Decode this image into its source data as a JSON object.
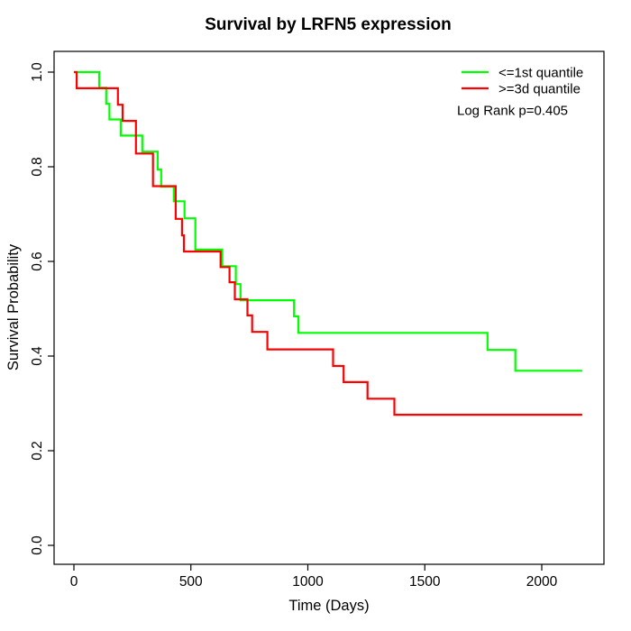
{
  "chart_data": {
    "type": "line",
    "subtype": "kaplan-meier-step",
    "title": "Survival by LRFN5 expression",
    "xlabel": "Time (Days)",
    "ylabel": "Survival Probability",
    "x_ticks": [
      0,
      500,
      1000,
      1500,
      2000
    ],
    "y_ticks": [
      {
        "v": 0.0,
        "label": "0.0"
      },
      {
        "v": 0.2,
        "label": "0.2"
      },
      {
        "v": 0.4,
        "label": "0.4"
      },
      {
        "v": 0.6,
        "label": "0.6"
      },
      {
        "v": 0.8,
        "label": "0.8"
      },
      {
        "v": 1.0,
        "label": "1.0"
      }
    ],
    "xlim": [
      0,
      2173
    ],
    "ylim": [
      0,
      1
    ],
    "grid": false,
    "legend": {
      "position": "top-right",
      "entries": [
        {
          "label": "<=1st quantile",
          "color": "#00FF00"
        },
        {
          "label": ">=3d quantile",
          "color": "#FF0000"
        }
      ]
    },
    "annotation": "Log Rank p=0.405",
    "axis_color": "#000000",
    "series": [
      {
        "name": "<=1st quantile",
        "color": "#00FF00",
        "t_end": 2173,
        "steps": [
          [
            108,
            0.967
          ],
          [
            138,
            0.933
          ],
          [
            152,
            0.9
          ],
          [
            200,
            0.866
          ],
          [
            292,
            0.832
          ],
          [
            358,
            0.794
          ],
          [
            373,
            0.758
          ],
          [
            427,
            0.727
          ],
          [
            473,
            0.691
          ],
          [
            519,
            0.625
          ],
          [
            634,
            0.59
          ],
          [
            692,
            0.552
          ],
          [
            712,
            0.518
          ],
          [
            941,
            0.484
          ],
          [
            960,
            0.449
          ],
          [
            1768,
            0.413
          ],
          [
            1887,
            0.369
          ]
        ]
      },
      {
        "name": ">=3d quantile",
        "color": "#FF0000",
        "t_end": 2173,
        "steps": [
          [
            12,
            0.966
          ],
          [
            188,
            0.931
          ],
          [
            208,
            0.897
          ],
          [
            265,
            0.828
          ],
          [
            338,
            0.759
          ],
          [
            435,
            0.69
          ],
          [
            462,
            0.655
          ],
          [
            470,
            0.621
          ],
          [
            627,
            0.588
          ],
          [
            665,
            0.556
          ],
          [
            688,
            0.52
          ],
          [
            742,
            0.486
          ],
          [
            762,
            0.451
          ],
          [
            827,
            0.414
          ],
          [
            1108,
            0.379
          ],
          [
            1153,
            0.345
          ],
          [
            1255,
            0.31
          ],
          [
            1370,
            0.276
          ]
        ]
      }
    ]
  }
}
